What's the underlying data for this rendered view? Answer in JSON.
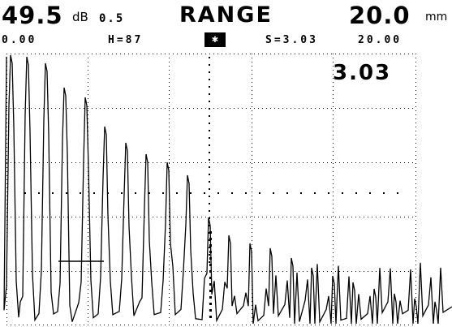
{
  "header": {
    "gain_value": "49.5",
    "gain_unit": "dB",
    "step_value": "0.5",
    "mode_title": "RANGE",
    "range_value": "20.0",
    "range_unit": "mm",
    "start_value": "0.00",
    "height_label": "H=87",
    "mode_icon_text": "✱",
    "sample_label": "S=3.03",
    "end_value": "20.00"
  },
  "display": {
    "reading_value": "3.03",
    "screen_color": "#ffffff",
    "trace_color": "#000000",
    "grid_color": "#000000",
    "gate_position_mm": 11.6
  }
}
